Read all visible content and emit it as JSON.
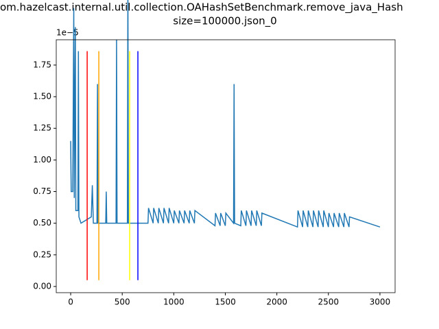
{
  "chart_data": {
    "type": "line",
    "title_lines": [
      "om.hazelcast.internal.util.collection.OAHashSetBenchmark.remove_java_Hash",
      "size=100000.json_0"
    ],
    "offset_label": "1e−5",
    "x": [
      0,
      5,
      20,
      30,
      35,
      45,
      50,
      70,
      75,
      80,
      100,
      200,
      210,
      220,
      255,
      260,
      265,
      340,
      345,
      350,
      440,
      445,
      450,
      550,
      555,
      560,
      700,
      750,
      755,
      800,
      805,
      850,
      855,
      900,
      905,
      950,
      955,
      1000,
      1005,
      1050,
      1055,
      1100,
      1105,
      1150,
      1155,
      1200,
      1205,
      1400,
      1405,
      1450,
      1455,
      1500,
      1505,
      1580,
      1585,
      1590,
      1650,
      1655,
      1700,
      1705,
      1750,
      1755,
      1800,
      1805,
      1850,
      1855,
      2200,
      2205,
      2250,
      2255,
      2300,
      2305,
      2350,
      2355,
      2400,
      2405,
      2450,
      2455,
      2500,
      2505,
      2550,
      2555,
      2600,
      2605,
      2650,
      2655,
      2700,
      2705,
      3000
    ],
    "series": [
      {
        "color": "#1f77b4",
        "values": [
          1.15,
          0.75,
          0.75,
          2.2,
          0.7,
          2.05,
          0.6,
          0.6,
          1.86,
          0.55,
          0.5,
          0.55,
          0.8,
          0.5,
          0.5,
          1.6,
          0.5,
          0.5,
          0.75,
          0.5,
          0.5,
          1.95,
          0.5,
          0.5,
          2.45,
          0.5,
          0.5,
          0.5,
          0.62,
          0.5,
          0.62,
          0.5,
          0.62,
          0.5,
          0.62,
          0.5,
          0.62,
          0.5,
          0.6,
          0.5,
          0.6,
          0.5,
          0.6,
          0.5,
          0.6,
          0.5,
          0.6,
          0.48,
          0.58,
          0.48,
          0.58,
          0.48,
          0.58,
          0.5,
          1.6,
          0.5,
          0.48,
          0.6,
          0.48,
          0.6,
          0.48,
          0.6,
          0.48,
          0.6,
          0.48,
          0.58,
          0.47,
          0.6,
          0.47,
          0.6,
          0.47,
          0.6,
          0.47,
          0.6,
          0.47,
          0.6,
          0.47,
          0.6,
          0.47,
          0.58,
          0.47,
          0.58,
          0.47,
          0.58,
          0.47,
          0.58,
          0.47,
          0.55,
          0.47
        ]
      }
    ],
    "vlines": [
      {
        "x": 160,
        "color": "#ff0000"
      },
      {
        "x": 273,
        "color": "#ffa500"
      },
      {
        "x": 572,
        "color": "#ffff00"
      },
      {
        "x": 652,
        "color": "#0000ff"
      }
    ],
    "vline_range": [
      0.05,
      1.86
    ],
    "xlim": [
      -140,
      3147
    ],
    "ylim": [
      -0.049,
      1.95
    ],
    "xticks": [
      0,
      500,
      1000,
      1500,
      2000,
      2500,
      3000
    ],
    "yticks": [
      {
        "value": 0,
        "label": "0.00"
      },
      {
        "value": 0.25,
        "label": "0.25"
      },
      {
        "value": 0.5,
        "label": "0.50"
      },
      {
        "value": 0.75,
        "label": "0.75"
      },
      {
        "value": 1,
        "label": "1.00"
      },
      {
        "value": 1.25,
        "label": "1.25"
      },
      {
        "value": 1.5,
        "label": "1.50"
      },
      {
        "value": 1.75,
        "label": "1.75"
      }
    ]
  }
}
